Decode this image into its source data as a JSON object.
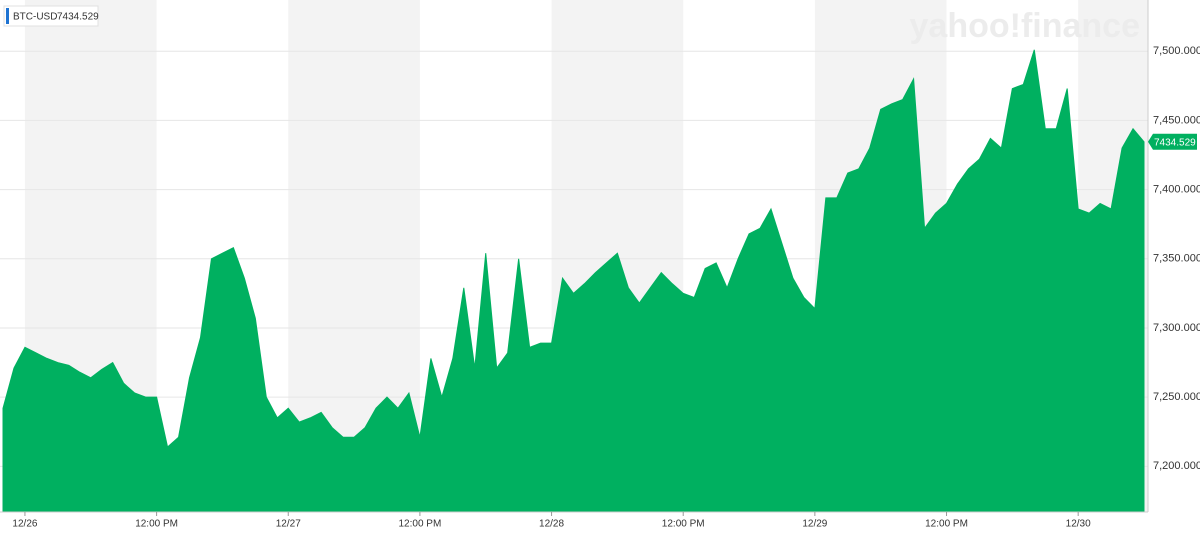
{
  "chart_data": {
    "type": "area",
    "watermark": "yahoo!finance",
    "categories": [
      null,
      null,
      "12/26",
      null,
      null,
      null,
      null,
      null,
      null,
      null,
      null,
      null,
      null,
      null,
      "12:00 PM",
      null,
      null,
      null,
      null,
      null,
      null,
      null,
      null,
      null,
      null,
      null,
      "12/27",
      null,
      null,
      null,
      null,
      null,
      null,
      null,
      null,
      null,
      null,
      null,
      "12:00 PM",
      null,
      null,
      null,
      null,
      null,
      null,
      null,
      null,
      null,
      null,
      null,
      "12/28",
      null,
      null,
      null,
      null,
      null,
      null,
      null,
      null,
      null,
      null,
      null,
      "12:00 PM",
      null,
      null,
      null,
      null,
      null,
      null,
      null,
      null,
      null,
      null,
      null,
      "12/29",
      null,
      null,
      null,
      null,
      null,
      null,
      null,
      null,
      null,
      null,
      null,
      "12:00 PM",
      null,
      null,
      null,
      null,
      null,
      null,
      null,
      null,
      null,
      null,
      null,
      "12/30",
      null,
      null,
      null,
      null,
      null,
      null
    ],
    "series": [
      {
        "name": "BTC-USD",
        "color": "#00b060",
        "values": [
          7242,
          7271,
          7286,
          7282,
          7278,
          7275,
          7273,
          7268,
          7264,
          7270,
          7275,
          7260,
          7253,
          7250,
          7250,
          7214,
          7221,
          7264,
          7293,
          7350,
          7354,
          7358,
          7336,
          7307,
          7250,
          7235,
          7242,
          7232,
          7235,
          7239,
          7228,
          7221,
          7221,
          7228,
          7242,
          7250,
          7242,
          7253,
          7221,
          7278,
          7250,
          7278,
          7329,
          7271,
          7354,
          7271,
          7282,
          7350,
          7286,
          7289,
          7289,
          7336,
          7325,
          7332,
          7340,
          7347,
          7354,
          7329,
          7318,
          7329,
          7340,
          7332,
          7325,
          7322,
          7343,
          7347,
          7329,
          7350,
          7368,
          7372,
          7386,
          7361,
          7336,
          7322,
          7314,
          7394,
          7394,
          7412,
          7415,
          7430,
          7458,
          7462,
          7465,
          7480,
          7372,
          7383,
          7390,
          7404,
          7415,
          7422,
          7437,
          7430,
          7473,
          7476,
          7501,
          7444,
          7444,
          7473,
          7386,
          7383,
          7390,
          7386,
          7430,
          7444,
          7434.529
        ]
      }
    ],
    "ylim": [
      7167,
      7537
    ],
    "yticks": [
      {
        "value": 7200,
        "label": "7,200.000"
      },
      {
        "value": 7250,
        "label": "7,250.000"
      },
      {
        "value": 7300,
        "label": "7,300.000"
      },
      {
        "value": 7350,
        "label": "7,350.000"
      },
      {
        "value": 7400,
        "label": "7,400.000"
      },
      {
        "value": 7450,
        "label": "7,450.000"
      },
      {
        "value": 7500,
        "label": "7,500.000"
      }
    ],
    "grid": true
  }
}
